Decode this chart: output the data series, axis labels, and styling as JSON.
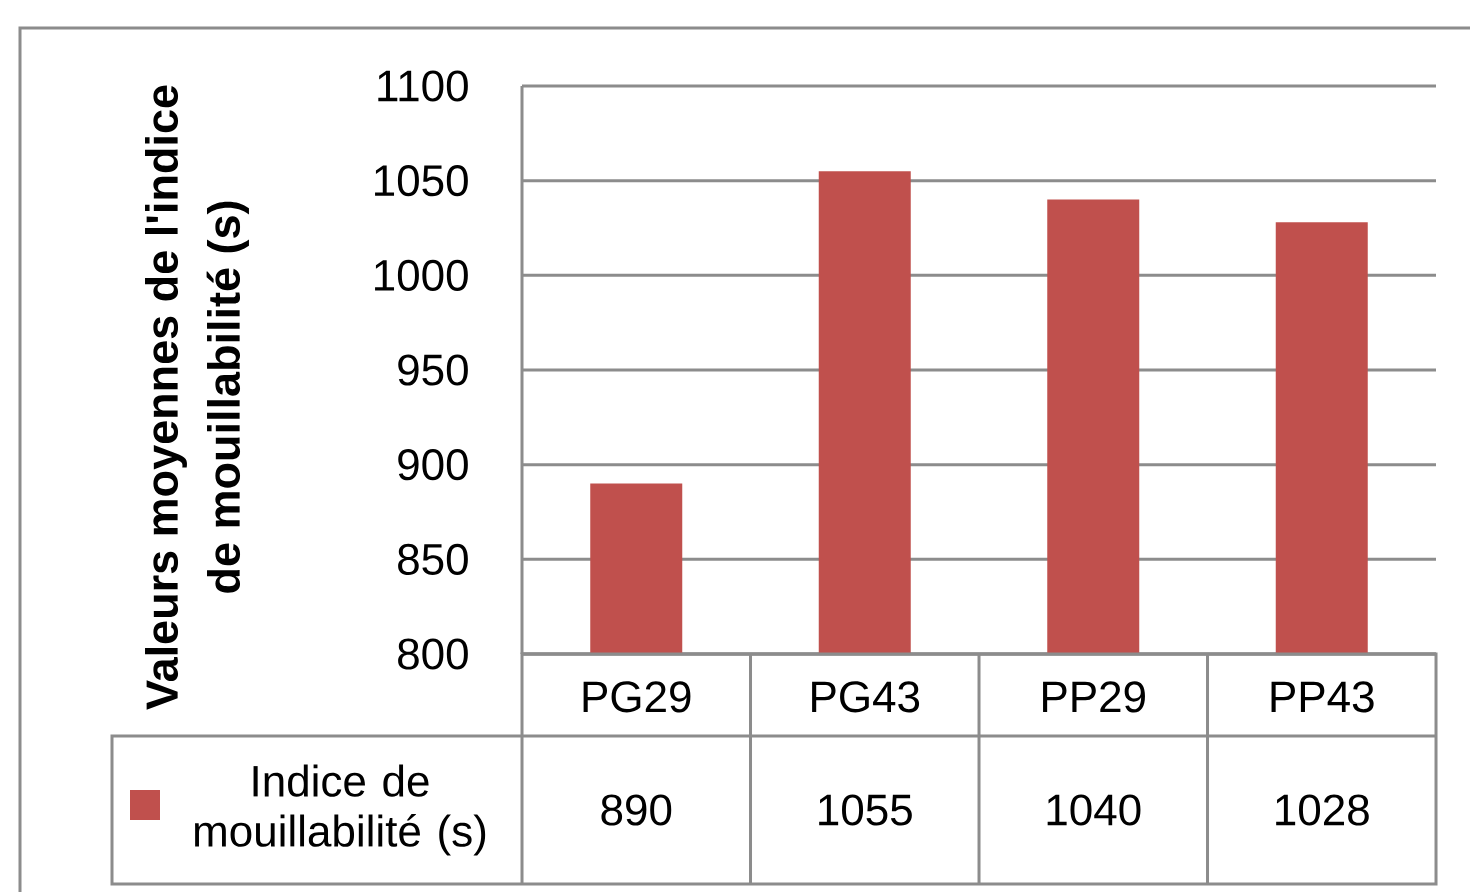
{
  "chart_data": {
    "type": "bar",
    "ylabel": "Valeurs moyennes de l'indice de mouillabilité (s)",
    "categories": [
      "PG29",
      "PG43",
      "PP29",
      "PP43"
    ],
    "series": [
      {
        "name": "Indice de mouillabilité (s)",
        "color": "#c0504d",
        "values": [
          890,
          1055,
          1040,
          1028
        ]
      }
    ],
    "ylim": [
      800,
      1100
    ],
    "yticks": [
      800,
      850,
      900,
      950,
      1000,
      1050,
      1100
    ],
    "grid": "y",
    "data_labels": true,
    "legend": "bottom left"
  }
}
